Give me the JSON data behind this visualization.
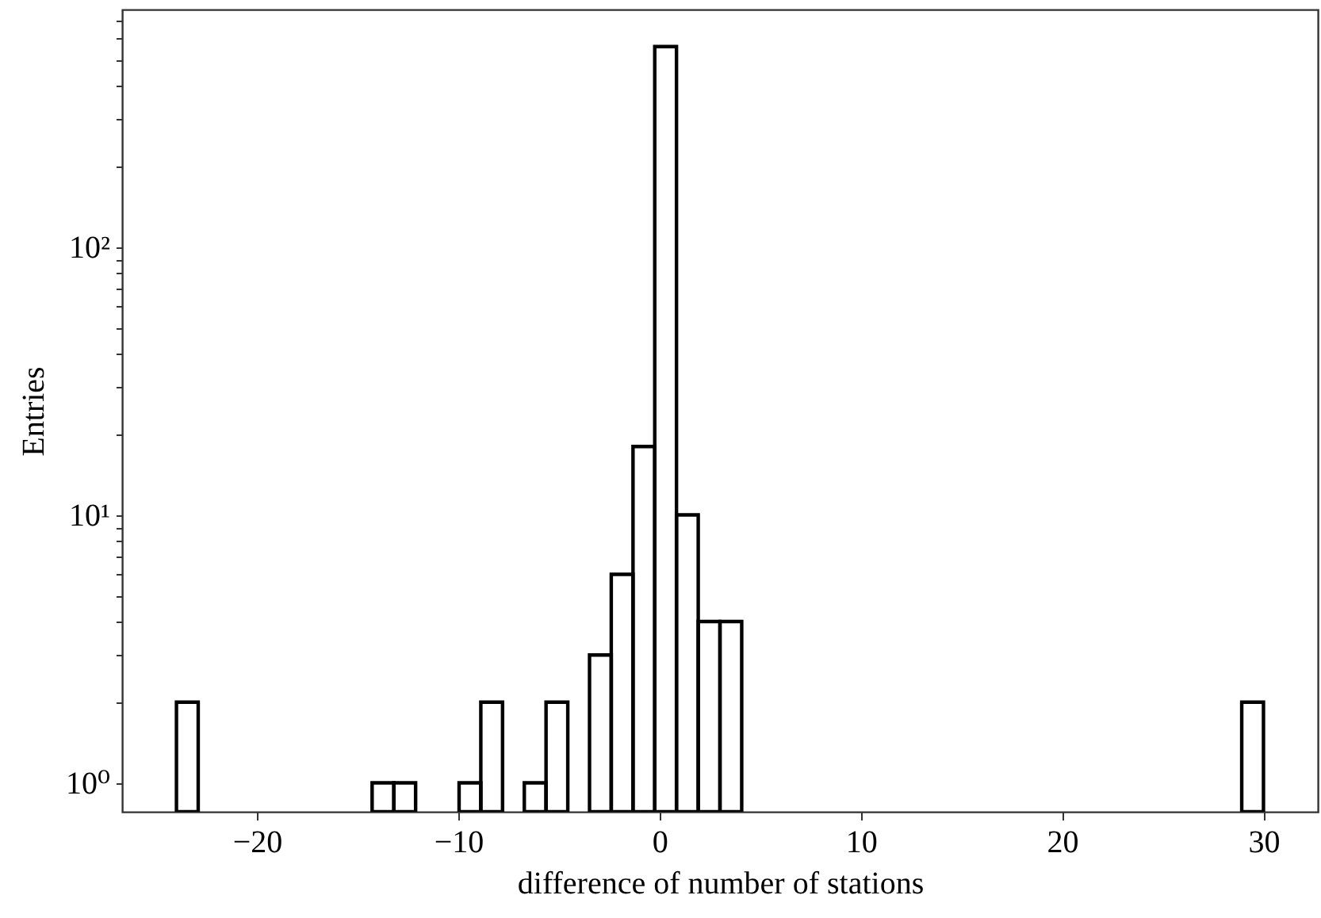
{
  "chart_data": {
    "type": "histogram",
    "xlabel": "difference of number of stations",
    "ylabel": "Entries",
    "bins": [
      -24,
      -22.92,
      -21.84,
      -20.76,
      -19.68,
      -18.6,
      -17.52,
      -16.44,
      -15.36,
      -14.28,
      -13.2,
      -12.12,
      -11.04,
      -9.96,
      -8.88,
      -7.8,
      -6.72,
      -5.64,
      -4.56,
      -3.48,
      -2.4,
      -1.32,
      -0.24,
      0.84,
      1.92,
      3,
      4.08,
      5.16,
      6.24,
      7.32,
      8.4,
      9.48,
      10.56,
      11.64,
      12.72,
      13.8,
      14.88,
      15.96,
      17.04,
      18.12,
      19.2,
      20.28,
      21.36,
      22.44,
      23.52,
      24.6,
      25.68,
      26.76,
      27.84,
      28.92,
      30
    ],
    "values": [
      2,
      null,
      null,
      null,
      null,
      null,
      null,
      null,
      null,
      1,
      1,
      null,
      null,
      1,
      2,
      null,
      1,
      2,
      null,
      3,
      6,
      18,
      560,
      10,
      4,
      4,
      null,
      null,
      null,
      null,
      null,
      null,
      null,
      null,
      null,
      null,
      null,
      null,
      null,
      null,
      null,
      null,
      null,
      null,
      null,
      null,
      null,
      null,
      null,
      2
    ],
    "color": "#000000",
    "log": "y",
    "grid": false,
    "xlim": [
      -26.7,
      32.7
    ],
    "xticks": [
      -20,
      -10,
      0,
      10,
      20,
      30
    ],
    "ylim": [
      0.78,
      770
    ],
    "yticks": [
      {
        "value": 1,
        "label": "10⁰"
      },
      {
        "value": 2,
        "label": null
      },
      {
        "value": 3,
        "label": null
      },
      {
        "value": 4,
        "label": null
      },
      {
        "value": 5,
        "label": null
      },
      {
        "value": 6,
        "label": null
      },
      {
        "value": 7,
        "label": null
      },
      {
        "value": 8,
        "label": null
      },
      {
        "value": 9,
        "label": null
      },
      {
        "value": 10,
        "label": "10¹"
      },
      {
        "value": 20,
        "label": null
      },
      {
        "value": 30,
        "label": null
      },
      {
        "value": 40,
        "label": null
      },
      {
        "value": 50,
        "label": null
      },
      {
        "value": 60,
        "label": null
      },
      {
        "value": 70,
        "label": null
      },
      {
        "value": 80,
        "label": null
      },
      {
        "value": 90,
        "label": null
      },
      {
        "value": 100,
        "label": "10²"
      },
      {
        "value": 200,
        "label": null
      },
      {
        "value": 300,
        "label": null
      },
      {
        "value": 400,
        "label": null
      },
      {
        "value": 500,
        "label": null
      },
      {
        "value": 600,
        "label": null
      },
      {
        "value": 700,
        "label": null
      }
    ]
  }
}
